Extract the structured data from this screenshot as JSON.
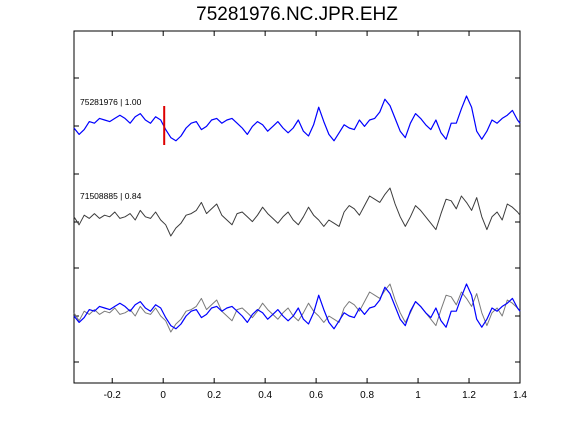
{
  "title": "75281976.NC.JPR.EHZ",
  "chart_data": {
    "type": "line",
    "title": "75281976.NC.JPR.EHZ",
    "xlabel": "",
    "ylabel": "",
    "xlim": [
      -0.35,
      1.4
    ],
    "x_ticks": [
      -0.2,
      0,
      0.2,
      0.4,
      0.6,
      0.8,
      1,
      1.2,
      1.4
    ],
    "x_tick_labels": [
      "-0.2",
      "0",
      "0.2",
      "0.4",
      "0.6",
      "0.8",
      "1",
      "1.2",
      "1.4"
    ],
    "grid": false,
    "traces": [
      {
        "label": "75281976 | 1.00",
        "color": "#0000ff",
        "x": [
          -0.35,
          -0.33,
          -0.31,
          -0.29,
          -0.27,
          -0.25,
          -0.23,
          -0.21,
          -0.19,
          -0.17,
          -0.15,
          -0.13,
          -0.11,
          -0.09,
          -0.07,
          -0.05,
          -0.03,
          -0.01,
          0.01,
          0.03,
          0.05,
          0.07,
          0.09,
          0.11,
          0.13,
          0.15,
          0.17,
          0.19,
          0.21,
          0.23,
          0.25,
          0.27,
          0.29,
          0.31,
          0.33,
          0.35,
          0.37,
          0.39,
          0.41,
          0.43,
          0.45,
          0.47,
          0.49,
          0.51,
          0.53,
          0.55,
          0.57,
          0.59,
          0.61,
          0.63,
          0.65,
          0.67,
          0.69,
          0.71,
          0.73,
          0.75,
          0.77,
          0.79,
          0.81,
          0.83,
          0.85,
          0.87,
          0.89,
          0.91,
          0.93,
          0.95,
          0.97,
          0.99,
          1.01,
          1.03,
          1.05,
          1.07,
          1.09,
          1.11,
          1.13,
          1.15,
          1.17,
          1.19,
          1.21,
          1.23,
          1.25,
          1.27,
          1.29,
          1.31,
          1.33,
          1.35,
          1.37,
          1.39,
          1.4
        ],
        "y": [
          0.0,
          -0.4,
          -0.1,
          0.4,
          0.3,
          0.6,
          0.5,
          0.4,
          0.6,
          0.8,
          0.6,
          0.3,
          0.7,
          0.9,
          0.5,
          0.3,
          0.7,
          0.5,
          -0.1,
          -0.6,
          -0.8,
          -0.5,
          0.0,
          0.3,
          0.4,
          -0.1,
          0.1,
          0.5,
          0.6,
          0.3,
          0.5,
          0.6,
          0.3,
          0.0,
          -0.4,
          0.1,
          0.4,
          0.2,
          -0.2,
          0.1,
          0.4,
          0.0,
          -0.3,
          0.0,
          0.5,
          -0.2,
          -0.5,
          0.2,
          1.3,
          0.4,
          -0.4,
          -0.8,
          -0.3,
          0.2,
          0.0,
          -0.1,
          0.5,
          0.1,
          0.5,
          0.6,
          1.0,
          1.8,
          1.4,
          0.6,
          -0.2,
          -0.6,
          0.3,
          0.9,
          0.6,
          0.2,
          -0.1,
          0.5,
          -0.3,
          -0.7,
          0.3,
          0.3,
          1.2,
          2.0,
          1.3,
          -0.2,
          -0.7,
          -0.2,
          0.5,
          0.3,
          0.6,
          0.8,
          1.1,
          0.5,
          0.3
        ]
      },
      {
        "label": "71508885 | 0.84",
        "color": "#3c3c3c",
        "x": [
          -0.35,
          -0.33,
          -0.31,
          -0.29,
          -0.27,
          -0.25,
          -0.23,
          -0.21,
          -0.19,
          -0.17,
          -0.15,
          -0.13,
          -0.11,
          -0.09,
          -0.07,
          -0.05,
          -0.03,
          -0.01,
          0.01,
          0.03,
          0.05,
          0.07,
          0.09,
          0.11,
          0.13,
          0.15,
          0.17,
          0.19,
          0.21,
          0.23,
          0.25,
          0.27,
          0.29,
          0.31,
          0.33,
          0.35,
          0.37,
          0.39,
          0.41,
          0.43,
          0.45,
          0.47,
          0.49,
          0.51,
          0.53,
          0.55,
          0.57,
          0.59,
          0.61,
          0.63,
          0.65,
          0.67,
          0.69,
          0.71,
          0.73,
          0.75,
          0.77,
          0.79,
          0.81,
          0.83,
          0.85,
          0.87,
          0.89,
          0.91,
          0.93,
          0.95,
          0.97,
          0.99,
          1.01,
          1.03,
          1.05,
          1.07,
          1.09,
          1.11,
          1.13,
          1.15,
          1.17,
          1.19,
          1.21,
          1.23,
          1.25,
          1.27,
          1.29,
          1.31,
          1.33,
          1.35,
          1.37,
          1.39,
          1.4
        ],
        "y": [
          0.2,
          -0.3,
          0.3,
          0.1,
          0.4,
          0.1,
          0.3,
          0.2,
          0.5,
          0.1,
          0.2,
          0.4,
          0.0,
          0.6,
          0.2,
          0.1,
          0.5,
          0.0,
          -0.3,
          -1.0,
          -0.5,
          -0.2,
          0.3,
          0.4,
          0.6,
          1.1,
          0.4,
          0.7,
          1.0,
          0.3,
          0.0,
          -0.3,
          0.4,
          0.5,
          0.2,
          -0.1,
          0.3,
          0.8,
          0.4,
          0.1,
          -0.2,
          0.2,
          0.5,
          0.0,
          -0.3,
          0.2,
          0.8,
          0.3,
          0.0,
          -0.4,
          0.0,
          -0.2,
          -0.4,
          0.5,
          0.9,
          0.7,
          0.3,
          0.9,
          1.5,
          1.3,
          1.1,
          1.6,
          2.0,
          1.0,
          0.2,
          -0.4,
          0.2,
          0.9,
          0.6,
          0.2,
          -0.2,
          -0.6,
          0.4,
          1.3,
          1.2,
          0.7,
          1.5,
          1.1,
          0.6,
          1.4,
          0.2,
          -0.6,
          0.2,
          0.5,
          0.0,
          1.0,
          0.8,
          0.5,
          0.3
        ]
      }
    ],
    "overlay": {
      "colors": [
        "#0000ff",
        "#7a7a7a"
      ]
    },
    "pick_marker": {
      "x": 0,
      "color": "#dd0000"
    }
  }
}
